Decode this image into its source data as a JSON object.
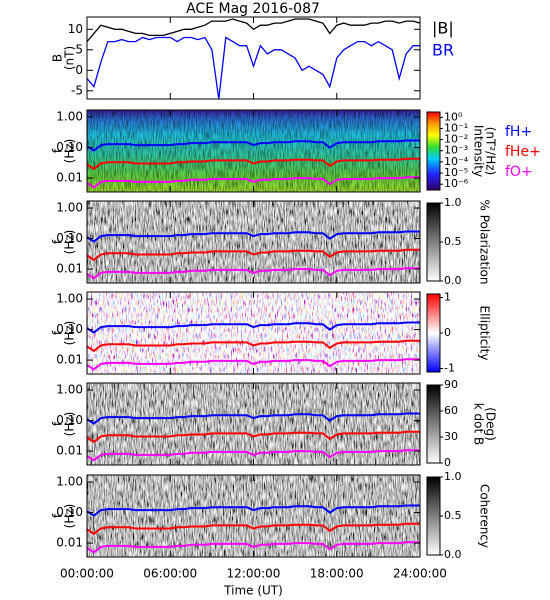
{
  "chart_data": [
    {
      "type": "line",
      "title": "ACE Mag 2016-087",
      "ylabel": [
        "B",
        "(nT)"
      ],
      "x": [
        0,
        0.5,
        1,
        1.5,
        2,
        2.5,
        3,
        3.5,
        4,
        4.5,
        5,
        5.5,
        6,
        6.5,
        7,
        7.5,
        8,
        8.5,
        9,
        9.5,
        10,
        10.5,
        11,
        11.5,
        12,
        12.5,
        13,
        13.5,
        14,
        14.5,
        15,
        15.5,
        16,
        16.5,
        17,
        17.5,
        18,
        18.5,
        19,
        19.5,
        20,
        20.5,
        21,
        21.5,
        22,
        22.5,
        23,
        23.5,
        24
      ],
      "xlim": [
        0,
        24
      ],
      "ylim": [
        -7,
        13
      ],
      "yticks": [
        -5,
        0,
        5,
        10
      ],
      "series": [
        {
          "name": "|B|",
          "color": "#000000",
          "values": [
            7,
            9,
            11,
            10.5,
            10,
            10,
            9.5,
            9,
            9,
            8.5,
            8.5,
            8.5,
            9,
            9.5,
            10,
            10,
            10.5,
            11,
            12,
            12,
            12,
            12.5,
            12,
            11.5,
            10,
            11,
            11,
            11.5,
            11.5,
            12,
            12.5,
            12.5,
            12.5,
            12,
            11.5,
            9,
            11,
            11.5,
            11,
            11,
            11,
            11.5,
            11.5,
            12,
            12,
            11.5,
            12,
            12,
            11.5
          ]
        },
        {
          "name": "BR",
          "color": "#0000ff",
          "values": [
            -2,
            -4,
            2,
            7,
            7,
            7.5,
            7,
            7,
            8,
            7.5,
            8,
            8,
            8,
            7,
            8,
            8,
            7.5,
            8,
            5,
            -7,
            8,
            7,
            6,
            6,
            1,
            6,
            4,
            5,
            5,
            4,
            3,
            0,
            1,
            0,
            -1,
            -4,
            3,
            5,
            6,
            7,
            7,
            6,
            7,
            6,
            5,
            -2,
            4,
            6,
            6
          ]
        }
      ]
    },
    {
      "type": "spectrogram",
      "ylabel": [
        "f",
        "(Hz)"
      ],
      "log_y": true,
      "ylim": [
        0.0035,
        1.7
      ],
      "yticks": [
        {
          "value": 0.01,
          "label": "0.01"
        },
        {
          "value": 0.1,
          "label": "0.10"
        },
        {
          "value": 1,
          "label": "1.00"
        }
      ],
      "colormap": "rainbow",
      "colorbar_label": [
        "Intensity",
        "(nT²/Hz)"
      ],
      "log_z": true,
      "zlim": [
        3e-07,
        3
      ],
      "zticks": [
        {
          "value": 1,
          "label": "10⁰"
        },
        {
          "value": 0.1,
          "label": "10⁻¹"
        },
        {
          "value": 0.01,
          "label": "10⁻²"
        },
        {
          "value": 0.001,
          "label": "10⁻³"
        },
        {
          "value": 0.0001,
          "label": "10⁻⁴"
        },
        {
          "value": 1e-05,
          "label": "10⁻⁵"
        },
        {
          "value": 1e-06,
          "label": "10⁻⁶"
        }
      ],
      "x": [
        0,
        0.5,
        1,
        1.5,
        2,
        2.5,
        3,
        3.5,
        4,
        4.5,
        5,
        5.5,
        6,
        6.5,
        7,
        7.5,
        8,
        8.5,
        9,
        9.5,
        10,
        10.5,
        11,
        11.5,
        12,
        12.5,
        13,
        13.5,
        14,
        14.5,
        15,
        15.5,
        16,
        16.5,
        17,
        17.5,
        18,
        18.5,
        19,
        19.5,
        20,
        20.5,
        21,
        21.5,
        22,
        22.5,
        23,
        23.5,
        24
      ],
      "series": [
        {
          "name": "fH+",
          "color": "#0000ff",
          "values": [
            0.11,
            0.08,
            0.12,
            0.13,
            0.13,
            0.13,
            0.13,
            0.12,
            0.12,
            0.12,
            0.12,
            0.12,
            0.12,
            0.13,
            0.13,
            0.14,
            0.14,
            0.14,
            0.15,
            0.15,
            0.15,
            0.15,
            0.15,
            0.15,
            0.12,
            0.14,
            0.14,
            0.15,
            0.15,
            0.15,
            0.16,
            0.16,
            0.16,
            0.15,
            0.15,
            0.1,
            0.14,
            0.15,
            0.15,
            0.15,
            0.15,
            0.15,
            0.16,
            0.16,
            0.16,
            0.16,
            0.17,
            0.17,
            0.17
          ]
        },
        {
          "name": "fHe+",
          "color": "#ff0000",
          "values": [
            0.028,
            0.02,
            0.03,
            0.033,
            0.033,
            0.033,
            0.033,
            0.03,
            0.03,
            0.03,
            0.03,
            0.03,
            0.03,
            0.033,
            0.033,
            0.035,
            0.035,
            0.035,
            0.038,
            0.038,
            0.038,
            0.038,
            0.038,
            0.038,
            0.03,
            0.035,
            0.035,
            0.038,
            0.038,
            0.038,
            0.04,
            0.04,
            0.04,
            0.038,
            0.038,
            0.025,
            0.035,
            0.038,
            0.038,
            0.038,
            0.038,
            0.038,
            0.04,
            0.04,
            0.04,
            0.04,
            0.043,
            0.043,
            0.043
          ]
        },
        {
          "name": "fO+",
          "color": "#ff00ff",
          "values": [
            0.0069,
            0.005,
            0.0075,
            0.0081,
            0.0081,
            0.0081,
            0.0081,
            0.0075,
            0.0075,
            0.0075,
            0.0075,
            0.0075,
            0.0075,
            0.0081,
            0.0081,
            0.0088,
            0.0088,
            0.0088,
            0.0094,
            0.0094,
            0.0094,
            0.0094,
            0.0094,
            0.0094,
            0.0075,
            0.0088,
            0.0088,
            0.0094,
            0.0094,
            0.0094,
            0.01,
            0.01,
            0.01,
            0.0094,
            0.0094,
            0.0063,
            0.0088,
            0.0094,
            0.0094,
            0.0094,
            0.0094,
            0.0094,
            0.01,
            0.01,
            0.01,
            0.01,
            0.0106,
            0.0106,
            0.0106
          ]
        }
      ]
    },
    {
      "type": "spectrogram",
      "ylabel": [
        "f",
        "(Hz)"
      ],
      "log_y": true,
      "ylim": [
        0.0035,
        1.7
      ],
      "yticks": [
        {
          "value": 0.01,
          "label": "0.01"
        },
        {
          "value": 0.1,
          "label": "0.10"
        },
        {
          "value": 1,
          "label": "1.00"
        }
      ],
      "colormap": "gray",
      "colorbar_label": [
        "% Polarization"
      ],
      "zlim": [
        0,
        1
      ],
      "zticks": [
        {
          "value": 0,
          "label": "0.0"
        },
        {
          "value": 0.5,
          "label": "0.5"
        },
        {
          "value": 1,
          "label": "1.0"
        }
      ]
    },
    {
      "type": "spectrogram",
      "ylabel": [
        "f",
        "(Hz)"
      ],
      "log_y": true,
      "ylim": [
        0.0035,
        1.7
      ],
      "yticks": [
        {
          "value": 0.01,
          "label": "0.01"
        },
        {
          "value": 0.1,
          "label": "0.10"
        },
        {
          "value": 1,
          "label": "1.00"
        }
      ],
      "colormap": "bwr",
      "colorbar_label": [
        "Ellipticity"
      ],
      "zlim": [
        -1.1,
        1.1
      ],
      "zticks": [
        -1,
        0,
        1
      ]
    },
    {
      "type": "spectrogram",
      "ylabel": [
        "f",
        "(Hz)"
      ],
      "log_y": true,
      "ylim": [
        0.0035,
        1.7
      ],
      "yticks": [
        {
          "value": 0.01,
          "label": "0.01"
        },
        {
          "value": 0.1,
          "label": "0.10"
        },
        {
          "value": 1,
          "label": "1.00"
        }
      ],
      "colormap": "gray",
      "colorbar_label": [
        "k dot B",
        "(Deg)"
      ],
      "zlim": [
        0,
        90
      ],
      "zticks": [
        0,
        30,
        60,
        90
      ]
    },
    {
      "type": "spectrogram",
      "ylabel": [
        "f",
        "(Hz)"
      ],
      "log_y": true,
      "ylim": [
        0.0035,
        1.7
      ],
      "yticks": [
        {
          "value": 0.01,
          "label": "0.01"
        },
        {
          "value": 0.1,
          "label": "0.10"
        },
        {
          "value": 1,
          "label": "1.00"
        }
      ],
      "colormap": "gray",
      "colorbar_label": [
        "Coherency"
      ],
      "zlim": [
        0,
        1
      ],
      "zticks": [
        {
          "value": 0,
          "label": "0.0"
        },
        {
          "value": 0.5,
          "label": "0.5"
        },
        {
          "value": 1,
          "label": "1.0"
        }
      ],
      "xlim": [
        0,
        24
      ],
      "xlabel": "Time (UT)",
      "xticks": [
        {
          "value": 0,
          "label": "00:00:00"
        },
        {
          "value": 6,
          "label": "06:00:00"
        },
        {
          "value": 12,
          "label": "12:00:00"
        },
        {
          "value": 18,
          "label": "18:00:00"
        },
        {
          "value": 24,
          "label": "24:00:00"
        }
      ]
    }
  ]
}
